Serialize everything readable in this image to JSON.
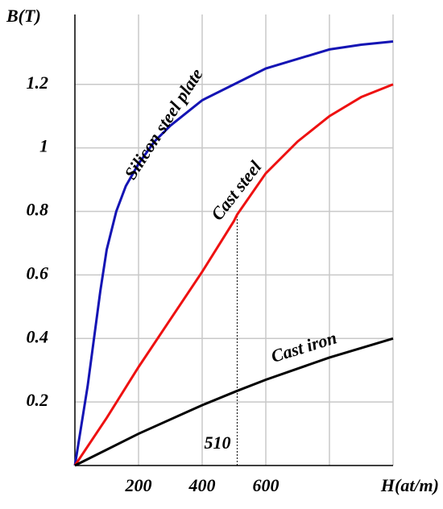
{
  "chart_data": {
    "type": "line",
    "y_label": "B(T)",
    "x_label": "H(at/m)",
    "xlim": [
      0,
      1000
    ],
    "ylim": [
      0,
      1.42
    ],
    "xticks": [
      200,
      400,
      600,
      {
        "value": 800,
        "label": null
      }
    ],
    "yticks": [
      0.2,
      0.4,
      0.6,
      0.8,
      1.0,
      1.2
    ],
    "grid": true,
    "series": [
      {
        "name": "Silicon steel plate",
        "color": "#1414b4",
        "x": [
          0,
          40,
          80,
          100,
          130,
          160,
          200,
          250,
          300,
          400,
          500,
          600,
          700,
          800,
          900,
          1000
        ],
        "values": [
          0,
          0.25,
          0.55,
          0.68,
          0.8,
          0.88,
          0.95,
          1.02,
          1.07,
          1.15,
          1.2,
          1.25,
          1.28,
          1.31,
          1.325,
          1.335
        ]
      },
      {
        "name": "Cast steel",
        "color": "#ee1111",
        "x": [
          0,
          100,
          200,
          300,
          400,
          500,
          510,
          600,
          700,
          800,
          900,
          1000
        ],
        "values": [
          0,
          0.15,
          0.31,
          0.46,
          0.61,
          0.77,
          0.79,
          0.92,
          1.02,
          1.1,
          1.16,
          1.2
        ]
      },
      {
        "name": "Cast iron",
        "color": "#000000",
        "x": [
          0,
          200,
          400,
          510,
          600,
          800,
          1000
        ],
        "values": [
          0,
          0.1,
          0.19,
          0.235,
          0.27,
          0.34,
          0.4
        ]
      }
    ],
    "annotations": [
      {
        "x": 510,
        "y": 0.79
      }
    ]
  }
}
